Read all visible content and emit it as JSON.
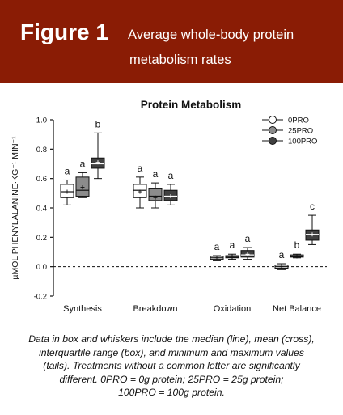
{
  "header": {
    "figure_label": "Figure 1",
    "caption_line1": "Average whole-body protein",
    "caption_line2": "metabolism rates"
  },
  "footer": {
    "lines": [
      "Data in box and whiskers include the median (line), mean (cross),",
      "interquartile range (box), and minimum and maximum values",
      "(tails). Treatments without a common letter are significantly",
      "different. 0PRO = 0g protein; 25PRO = 25g protein;",
      "100PRO = 100g protein."
    ]
  },
  "chart_data": {
    "type": "boxplot",
    "title": "Protein Metabolism",
    "ylabel": "µMOL PHENYLALANINE·KG⁻¹ MIN⁻¹",
    "xlabel": "",
    "ylim": [
      -0.2,
      1.0
    ],
    "yticks": [
      "-0.2",
      "0.0",
      "0.2",
      "0.4",
      "0.6",
      "0.8",
      "1.0"
    ],
    "reference_line_y": 0.0,
    "legend_position": "top-right",
    "categories": [
      "Synthesis",
      "Breakdown",
      "Oxidation",
      "Net Balance"
    ],
    "series": [
      {
        "name": "0PRO",
        "color": "#ffffff",
        "boxes": [
          {
            "min": 0.42,
            "q1": 0.47,
            "median": 0.51,
            "q3": 0.56,
            "max": 0.59,
            "mean": 0.51,
            "letter": "a"
          },
          {
            "min": 0.4,
            "q1": 0.47,
            "median": 0.52,
            "q3": 0.56,
            "max": 0.61,
            "mean": 0.51,
            "letter": "a"
          },
          {
            "min": 0.04,
            "q1": 0.05,
            "median": 0.06,
            "q3": 0.07,
            "max": 0.075,
            "mean": 0.06,
            "letter": "a"
          },
          {
            "min": -0.02,
            "q1": -0.01,
            "median": 0.0,
            "q3": 0.01,
            "max": 0.02,
            "mean": 0.0,
            "letter": "a"
          }
        ]
      },
      {
        "name": "25PRO",
        "color": "#8c8c8c",
        "boxes": [
          {
            "min": 0.47,
            "q1": 0.48,
            "median": 0.52,
            "q3": 0.61,
            "max": 0.64,
            "mean": 0.54,
            "letter": "a"
          },
          {
            "min": 0.4,
            "q1": 0.45,
            "median": 0.48,
            "q3": 0.53,
            "max": 0.57,
            "mean": 0.47,
            "letter": "a"
          },
          {
            "min": 0.05,
            "q1": 0.06,
            "median": 0.065,
            "q3": 0.075,
            "max": 0.085,
            "mean": 0.065,
            "letter": "a"
          },
          {
            "min": 0.06,
            "q1": 0.065,
            "median": 0.07,
            "q3": 0.08,
            "max": 0.085,
            "mean": 0.07,
            "letter": "b"
          }
        ]
      },
      {
        "name": "100PRO",
        "color": "#404040",
        "boxes": [
          {
            "min": 0.6,
            "q1": 0.67,
            "median": 0.7,
            "q3": 0.74,
            "max": 0.91,
            "mean": 0.71,
            "letter": "b"
          },
          {
            "min": 0.42,
            "q1": 0.45,
            "median": 0.48,
            "q3": 0.52,
            "max": 0.56,
            "mean": 0.48,
            "letter": "a"
          },
          {
            "min": 0.05,
            "q1": 0.065,
            "median": 0.08,
            "q3": 0.11,
            "max": 0.13,
            "mean": 0.085,
            "letter": "a"
          },
          {
            "min": 0.15,
            "q1": 0.18,
            "median": 0.22,
            "q3": 0.25,
            "max": 0.35,
            "mean": 0.22,
            "letter": "c"
          }
        ]
      }
    ]
  }
}
